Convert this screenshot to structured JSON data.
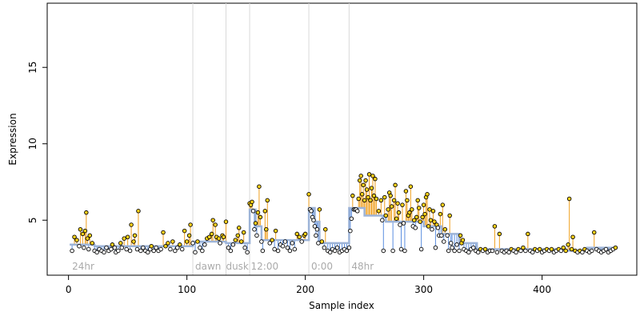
{
  "colors": {
    "background": "#ffffff",
    "axis": "#000000",
    "above_stem": "#f0a020",
    "below_stem": "#5b8ee0",
    "fit_line": "#9db4d8",
    "point_fill": "#ffd21a",
    "point_stroke": "#000000",
    "divider": "#d9d9d9",
    "region_label": "#aaaaaa"
  },
  "chart_data": {
    "type": "scatter",
    "title": "",
    "xlabel": "Sample index",
    "ylabel": "Expression",
    "xlim": [
      -18,
      480
    ],
    "ylim": [
      1.4,
      19.2
    ],
    "x_ticks": [
      0,
      100,
      200,
      300,
      400
    ],
    "y_ticks": [
      5,
      10,
      15
    ],
    "grid": false,
    "legend": "none",
    "dividers": [
      105,
      133,
      153,
      203,
      237
    ],
    "regions": [
      {
        "label": "24hr",
        "x": 3
      },
      {
        "label": "dawn",
        "x": 107
      },
      {
        "label": "dusk",
        "x": 133
      },
      {
        "label": "12:00",
        "x": 154
      },
      {
        "label": "0:00",
        "x": 205
      },
      {
        "label": "48hr",
        "x": 239
      }
    ],
    "fit_steps": [
      {
        "x0": 1,
        "x1": 22,
        "y": 3.4
      },
      {
        "x0": 22,
        "x1": 105,
        "y": 3.3
      },
      {
        "x0": 105,
        "x1": 133,
        "y": 3.6
      },
      {
        "x0": 133,
        "x1": 153,
        "y": 3.5
      },
      {
        "x0": 153,
        "x1": 158,
        "y": 5.7
      },
      {
        "x0": 158,
        "x1": 163,
        "y": 4.6
      },
      {
        "x0": 163,
        "x1": 203,
        "y": 3.7
      },
      {
        "x0": 203,
        "x1": 208,
        "y": 5.8
      },
      {
        "x0": 208,
        "x1": 212,
        "y": 4.9
      },
      {
        "x0": 212,
        "x1": 237,
        "y": 3.5
      },
      {
        "x0": 237,
        "x1": 250,
        "y": 5.8
      },
      {
        "x0": 250,
        "x1": 268,
        "y": 5.3
      },
      {
        "x0": 268,
        "x1": 300,
        "y": 4.9
      },
      {
        "x0": 300,
        "x1": 315,
        "y": 4.6
      },
      {
        "x0": 315,
        "x1": 330,
        "y": 4.1
      },
      {
        "x0": 330,
        "x1": 345,
        "y": 3.5
      },
      {
        "x0": 345,
        "x1": 420,
        "y": 3.1
      },
      {
        "x0": 420,
        "x1": 438,
        "y": 3.0
      },
      {
        "x0": 438,
        "x1": 462,
        "y": 3.2
      }
    ],
    "series": [
      {
        "points": [
          [
            3,
            3.0
          ],
          [
            5,
            3.9
          ],
          [
            7,
            3.7
          ],
          [
            9,
            3.3
          ],
          [
            10,
            4.4
          ],
          [
            12,
            4.1
          ],
          [
            13,
            3.2
          ],
          [
            14,
            4.3
          ],
          [
            15,
            5.5
          ],
          [
            16,
            3.8
          ],
          [
            17,
            3.1
          ],
          [
            18,
            4.0
          ],
          [
            20,
            3.5
          ],
          [
            22,
            3.0
          ],
          [
            24,
            2.9
          ],
          [
            26,
            3.1
          ],
          [
            28,
            3.0
          ],
          [
            30,
            2.9
          ],
          [
            32,
            3.2
          ],
          [
            34,
            3.0
          ],
          [
            36,
            3.1
          ],
          [
            37,
            3.4
          ],
          [
            39,
            3.2
          ],
          [
            40,
            2.9
          ],
          [
            42,
            3.0
          ],
          [
            44,
            3.5
          ],
          [
            45,
            3.2
          ],
          [
            47,
            3.8
          ],
          [
            49,
            3.1
          ],
          [
            50,
            3.9
          ],
          [
            52,
            3.0
          ],
          [
            53,
            4.7
          ],
          [
            55,
            3.6
          ],
          [
            56,
            4.0
          ],
          [
            58,
            3.1
          ],
          [
            59,
            5.6
          ],
          [
            61,
            3.0
          ],
          [
            63,
            3.2
          ],
          [
            65,
            3.0
          ],
          [
            67,
            2.9
          ],
          [
            69,
            3.1
          ],
          [
            70,
            3.3
          ],
          [
            72,
            3.0
          ],
          [
            74,
            3.2
          ],
          [
            76,
            3.0
          ],
          [
            78,
            3.1
          ],
          [
            80,
            4.2
          ],
          [
            82,
            3.3
          ],
          [
            84,
            3.5
          ],
          [
            86,
            3.1
          ],
          [
            88,
            3.6
          ],
          [
            90,
            3.0
          ],
          [
            92,
            3.2
          ],
          [
            94,
            3.4
          ],
          [
            96,
            3.1
          ],
          [
            98,
            4.3
          ],
          [
            100,
            3.6
          ],
          [
            102,
            4.0
          ],
          [
            103,
            4.7
          ],
          [
            105,
            3.5
          ],
          [
            107,
            2.9
          ],
          [
            109,
            3.6
          ],
          [
            111,
            3.2
          ],
          [
            113,
            3.0
          ],
          [
            115,
            3.4
          ],
          [
            117,
            3.8
          ],
          [
            119,
            3.9
          ],
          [
            121,
            4.1
          ],
          [
            122,
            5.0
          ],
          [
            124,
            4.7
          ],
          [
            125,
            3.9
          ],
          [
            127,
            3.8
          ],
          [
            128,
            3.5
          ],
          [
            130,
            4.0
          ],
          [
            131,
            3.9
          ],
          [
            133,
            4.9
          ],
          [
            135,
            3.2
          ],
          [
            137,
            3.0
          ],
          [
            139,
            3.4
          ],
          [
            141,
            3.7
          ],
          [
            143,
            4.0
          ],
          [
            144,
            4.5
          ],
          [
            146,
            3.6
          ],
          [
            148,
            4.2
          ],
          [
            149,
            3.2
          ],
          [
            151,
            2.9
          ],
          [
            153,
            6.1
          ],
          [
            154,
            6.0
          ],
          [
            155,
            6.2
          ],
          [
            156,
            5.6
          ],
          [
            157,
            4.4
          ],
          [
            158,
            4.8
          ],
          [
            159,
            4.0
          ],
          [
            160,
            5.5
          ],
          [
            161,
            7.2
          ],
          [
            162,
            5.2
          ],
          [
            163,
            3.6
          ],
          [
            164,
            3.0
          ],
          [
            166,
            5.6
          ],
          [
            167,
            4.4
          ],
          [
            168,
            6.3
          ],
          [
            170,
            3.5
          ],
          [
            172,
            3.7
          ],
          [
            174,
            3.1
          ],
          [
            175,
            4.3
          ],
          [
            177,
            3.0
          ],
          [
            179,
            3.4
          ],
          [
            181,
            3.3
          ],
          [
            183,
            3.6
          ],
          [
            185,
            3.2
          ],
          [
            187,
            3.0
          ],
          [
            189,
            3.5
          ],
          [
            191,
            3.1
          ],
          [
            193,
            4.1
          ],
          [
            195,
            3.9
          ],
          [
            197,
            3.6
          ],
          [
            199,
            4.0
          ],
          [
            200,
            4.1
          ],
          [
            203,
            6.7
          ],
          [
            204,
            5.7
          ],
          [
            205,
            5.6
          ],
          [
            206,
            5.2
          ],
          [
            207,
            5.0
          ],
          [
            208,
            4.6
          ],
          [
            209,
            4.0
          ],
          [
            210,
            4.4
          ],
          [
            211,
            3.5
          ],
          [
            212,
            5.7
          ],
          [
            214,
            3.6
          ],
          [
            216,
            3.2
          ],
          [
            217,
            4.4
          ],
          [
            219,
            3.0
          ],
          [
            221,
            2.9
          ],
          [
            223,
            3.1
          ],
          [
            225,
            3.0
          ],
          [
            227,
            3.2
          ],
          [
            229,
            2.9
          ],
          [
            231,
            3.0
          ],
          [
            233,
            3.1
          ],
          [
            235,
            3.0
          ],
          [
            237,
            3.2
          ],
          [
            238,
            4.3
          ],
          [
            239,
            5.1
          ],
          [
            240,
            6.6
          ],
          [
            241,
            5.7
          ],
          [
            242,
            5.7
          ],
          [
            243,
            5.7
          ],
          [
            244,
            5.6
          ],
          [
            245,
            6.4
          ],
          [
            246,
            7.6
          ],
          [
            247,
            7.9
          ],
          [
            248,
            6.7
          ],
          [
            249,
            7.3
          ],
          [
            250,
            6.3
          ],
          [
            251,
            7.6
          ],
          [
            252,
            7.0
          ],
          [
            253,
            6.5
          ],
          [
            254,
            8.0
          ],
          [
            255,
            6.3
          ],
          [
            256,
            7.1
          ],
          [
            257,
            7.9
          ],
          [
            258,
            6.6
          ],
          [
            259,
            7.7
          ],
          [
            260,
            6.4
          ],
          [
            262,
            5.6
          ],
          [
            264,
            6.3
          ],
          [
            265,
            5.0
          ],
          [
            266,
            3.0
          ],
          [
            267,
            6.5
          ],
          [
            268,
            5.3
          ],
          [
            270,
            5.7
          ],
          [
            271,
            6.8
          ],
          [
            272,
            6.6
          ],
          [
            273,
            5.9
          ],
          [
            274,
            3.0
          ],
          [
            275,
            6.3
          ],
          [
            276,
            7.3
          ],
          [
            277,
            5.1
          ],
          [
            278,
            6.1
          ],
          [
            279,
            5.5
          ],
          [
            280,
            4.7
          ],
          [
            281,
            3.1
          ],
          [
            282,
            6.0
          ],
          [
            283,
            4.8
          ],
          [
            284,
            3.0
          ],
          [
            285,
            6.9
          ],
          [
            286,
            6.3
          ],
          [
            287,
            5.3
          ],
          [
            288,
            5.5
          ],
          [
            289,
            7.2
          ],
          [
            290,
            5.7
          ],
          [
            291,
            4.6
          ],
          [
            292,
            5.0
          ],
          [
            293,
            4.5
          ],
          [
            294,
            5.2
          ],
          [
            295,
            6.3
          ],
          [
            296,
            5.8
          ],
          [
            297,
            4.9
          ],
          [
            298,
            3.1
          ],
          [
            299,
            5.2
          ],
          [
            300,
            6.0
          ],
          [
            301,
            5.4
          ],
          [
            302,
            6.5
          ],
          [
            303,
            6.7
          ],
          [
            304,
            4.6
          ],
          [
            305,
            5.7
          ],
          [
            306,
            5.0
          ],
          [
            307,
            4.4
          ],
          [
            308,
            5.6
          ],
          [
            309,
            4.9
          ],
          [
            310,
            3.2
          ],
          [
            311,
            4.7
          ],
          [
            312,
            4.5
          ],
          [
            313,
            4.0
          ],
          [
            314,
            5.4
          ],
          [
            315,
            4.0
          ],
          [
            316,
            6.0
          ],
          [
            317,
            3.6
          ],
          [
            318,
            4.4
          ],
          [
            320,
            4.0
          ],
          [
            321,
            3.0
          ],
          [
            322,
            5.3
          ],
          [
            323,
            3.5
          ],
          [
            324,
            3.2
          ],
          [
            326,
            3.0
          ],
          [
            328,
            3.4
          ],
          [
            330,
            3.0
          ],
          [
            331,
            4.0
          ],
          [
            332,
            3.5
          ],
          [
            333,
            3.7
          ],
          [
            334,
            3.1
          ],
          [
            336,
            3.0
          ],
          [
            338,
            2.9
          ],
          [
            340,
            3.1
          ],
          [
            342,
            3.2
          ],
          [
            344,
            3.0
          ],
          [
            346,
            2.9
          ],
          [
            348,
            3.1
          ],
          [
            350,
            3.0
          ],
          [
            352,
            3.1
          ],
          [
            354,
            2.9
          ],
          [
            356,
            3.0
          ],
          [
            358,
            3.0
          ],
          [
            360,
            4.6
          ],
          [
            362,
            2.9
          ],
          [
            364,
            4.1
          ],
          [
            366,
            3.0
          ],
          [
            368,
            2.9
          ],
          [
            370,
            3.0
          ],
          [
            372,
            2.9
          ],
          [
            374,
            3.1
          ],
          [
            376,
            3.0
          ],
          [
            378,
            2.9
          ],
          [
            380,
            3.1
          ],
          [
            382,
            3.0
          ],
          [
            384,
            3.2
          ],
          [
            386,
            3.0
          ],
          [
            388,
            4.1
          ],
          [
            390,
            3.0
          ],
          [
            392,
            2.9
          ],
          [
            394,
            3.1
          ],
          [
            396,
            3.0
          ],
          [
            398,
            3.1
          ],
          [
            400,
            2.9
          ],
          [
            402,
            3.0
          ],
          [
            404,
            3.1
          ],
          [
            406,
            3.0
          ],
          [
            408,
            3.1
          ],
          [
            410,
            2.9
          ],
          [
            412,
            3.0
          ],
          [
            414,
            3.1
          ],
          [
            416,
            3.0
          ],
          [
            418,
            3.2
          ],
          [
            420,
            3.0
          ],
          [
            422,
            3.4
          ],
          [
            423,
            6.4
          ],
          [
            425,
            3.1
          ],
          [
            426,
            3.9
          ],
          [
            428,
            3.0
          ],
          [
            430,
            2.9
          ],
          [
            432,
            3.0
          ],
          [
            434,
            2.9
          ],
          [
            436,
            3.1
          ],
          [
            438,
            3.0
          ],
          [
            440,
            2.9
          ],
          [
            442,
            3.0
          ],
          [
            444,
            4.2
          ],
          [
            446,
            3.1
          ],
          [
            448,
            3.0
          ],
          [
            450,
            2.9
          ],
          [
            452,
            3.0
          ],
          [
            454,
            3.1
          ],
          [
            456,
            2.9
          ],
          [
            458,
            3.0
          ],
          [
            460,
            3.1
          ],
          [
            462,
            3.2
          ]
        ]
      }
    ]
  }
}
